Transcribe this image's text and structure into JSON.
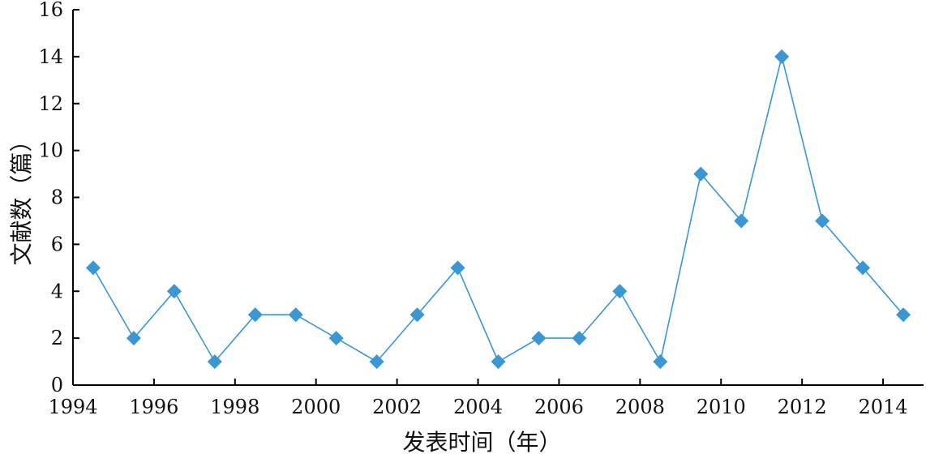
{
  "chart_data": {
    "type": "line",
    "xlabel": "发表时间（年）",
    "ylabel": "文献数（篇）",
    "xlim": [
      1994,
      2015
    ],
    "ylim": [
      0,
      16
    ],
    "x_ticks": [
      "1994",
      "1996",
      "1998",
      "2000",
      "2002",
      "2004",
      "2006",
      "2008",
      "2010",
      "2012",
      "2014"
    ],
    "y_ticks": [
      "0",
      "2",
      "4",
      "6",
      "8",
      "10",
      "12",
      "14",
      "16"
    ],
    "grid": false,
    "marker": "diamond",
    "color": "#3a97d4",
    "series": [
      {
        "x": [
          1994.5,
          1995.5,
          1996.5,
          1997.5,
          1998.5,
          1999.5,
          2000.5,
          2001.5,
          2002.5,
          2003.5,
          2004.5,
          2005.5,
          2006.5,
          2007.5,
          2008.5,
          2009.5,
          2010.5,
          2011.5,
          2012.5,
          2013.5,
          2014.5
        ],
        "values": [
          5,
          2,
          4,
          1,
          3,
          3,
          2,
          1,
          3,
          5,
          1,
          2,
          2,
          4,
          1,
          9,
          7,
          14,
          7,
          5,
          3
        ]
      }
    ]
  }
}
